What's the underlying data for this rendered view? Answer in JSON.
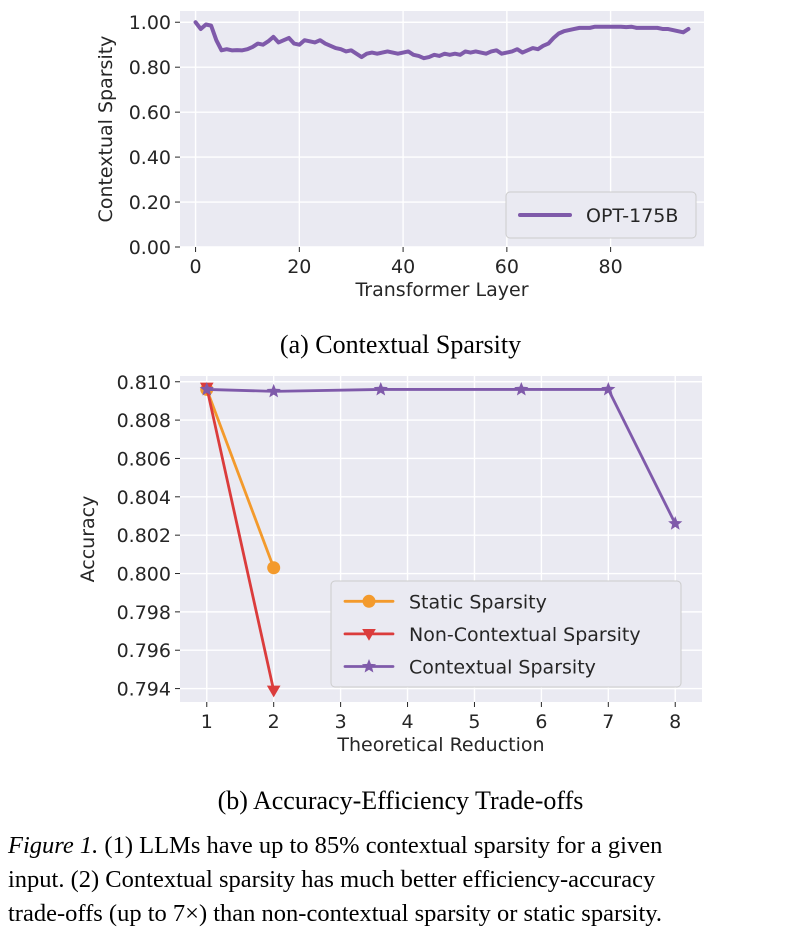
{
  "chart_data": [
    {
      "type": "line",
      "title": "",
      "xlabel": "Transformer Layer",
      "ylabel": "Contextual Sparsity",
      "xlim": [
        -3,
        98
      ],
      "ylim": [
        0.0,
        1.05
      ],
      "xticks": [
        0,
        20,
        40,
        60,
        80
      ],
      "yticks": [
        0.0,
        0.2,
        0.4,
        0.6,
        0.8,
        1.0
      ],
      "xtick_labels": [
        "0",
        "20",
        "40",
        "60",
        "80"
      ],
      "ytick_labels": [
        "0.00",
        "0.20",
        "0.40",
        "0.60",
        "0.80",
        "1.00"
      ],
      "grid": true,
      "legend_position": "lower-right",
      "series": [
        {
          "name": "OPT-175B",
          "color": "#7f5aaa",
          "x": [
            0,
            1,
            2,
            3,
            4,
            5,
            6,
            7,
            8,
            9,
            10,
            11,
            12,
            13,
            14,
            15,
            16,
            17,
            18,
            19,
            20,
            21,
            22,
            23,
            24,
            25,
            26,
            27,
            28,
            29,
            30,
            31,
            32,
            33,
            34,
            35,
            36,
            37,
            38,
            39,
            40,
            41,
            42,
            43,
            44,
            45,
            46,
            47,
            48,
            49,
            50,
            51,
            52,
            53,
            54,
            55,
            56,
            57,
            58,
            59,
            60,
            61,
            62,
            63,
            64,
            65,
            66,
            67,
            68,
            69,
            70,
            71,
            72,
            73,
            74,
            75,
            76,
            77,
            78,
            79,
            80,
            81,
            82,
            83,
            84,
            85,
            86,
            87,
            88,
            89,
            90,
            91,
            92,
            93,
            94,
            95
          ],
          "y": [
            1.0,
            0.97,
            0.99,
            0.985,
            0.92,
            0.875,
            0.88,
            0.875,
            0.876,
            0.875,
            0.88,
            0.89,
            0.905,
            0.9,
            0.915,
            0.935,
            0.91,
            0.92,
            0.93,
            0.905,
            0.9,
            0.92,
            0.915,
            0.91,
            0.92,
            0.905,
            0.895,
            0.885,
            0.88,
            0.87,
            0.875,
            0.86,
            0.845,
            0.86,
            0.865,
            0.86,
            0.865,
            0.87,
            0.865,
            0.86,
            0.865,
            0.87,
            0.855,
            0.85,
            0.84,
            0.845,
            0.855,
            0.85,
            0.86,
            0.855,
            0.86,
            0.855,
            0.87,
            0.865,
            0.87,
            0.865,
            0.86,
            0.87,
            0.875,
            0.86,
            0.865,
            0.87,
            0.88,
            0.865,
            0.875,
            0.885,
            0.88,
            0.895,
            0.905,
            0.93,
            0.95,
            0.96,
            0.965,
            0.97,
            0.975,
            0.975,
            0.975,
            0.98,
            0.98,
            0.98,
            0.98,
            0.98,
            0.98,
            0.978,
            0.98,
            0.975,
            0.975,
            0.975,
            0.975,
            0.975,
            0.97,
            0.97,
            0.965,
            0.96,
            0.955,
            0.97
          ]
        }
      ]
    },
    {
      "type": "line",
      "title": "",
      "xlabel": "Theoretical Reduction",
      "ylabel": "Accuracy",
      "xlim": [
        0.6,
        8.4
      ],
      "ylim": [
        0.7933,
        0.8103
      ],
      "xticks": [
        1,
        2,
        3,
        4,
        5,
        6,
        7,
        8
      ],
      "yticks": [
        0.794,
        0.796,
        0.798,
        0.8,
        0.802,
        0.804,
        0.806,
        0.808,
        0.81
      ],
      "xtick_labels": [
        "1",
        "2",
        "3",
        "4",
        "5",
        "6",
        "7",
        "8"
      ],
      "ytick_labels": [
        "0.794",
        "0.796",
        "0.798",
        "0.800",
        "0.802",
        "0.804",
        "0.806",
        "0.808",
        "0.810"
      ],
      "grid": true,
      "legend_position": "lower-right",
      "series": [
        {
          "name": "Static Sparsity",
          "color": "#f39a2c",
          "marker": "circle",
          "x": [
            1,
            2
          ],
          "y": [
            0.8096,
            0.8003
          ]
        },
        {
          "name": "Non-Contextual Sparsity",
          "color": "#db3c3c",
          "marker": "triangle-down",
          "x": [
            1,
            2
          ],
          "y": [
            0.8097,
            0.7939
          ]
        },
        {
          "name": "Contextual Sparsity",
          "color": "#7f5aaa",
          "marker": "star",
          "x": [
            1,
            2,
            3.6,
            5.7,
            7,
            8
          ],
          "y": [
            0.8096,
            0.8095,
            0.8096,
            0.8096,
            0.8096,
            0.8026
          ]
        }
      ]
    }
  ],
  "subcaption_a": "(a)  Contextual Sparsity",
  "subcaption_b": "(b)  Accuracy-Efficiency Trade-offs",
  "caption": {
    "label": "Figure 1.",
    "line1": " (1) LLMs have up to 85% contextual sparsity for a given",
    "line2": "input. (2) Contextual sparsity has much better efficiency-accuracy",
    "line3": "trade-offs (up to 7×) than non-contextual sparsity or static sparsity."
  }
}
